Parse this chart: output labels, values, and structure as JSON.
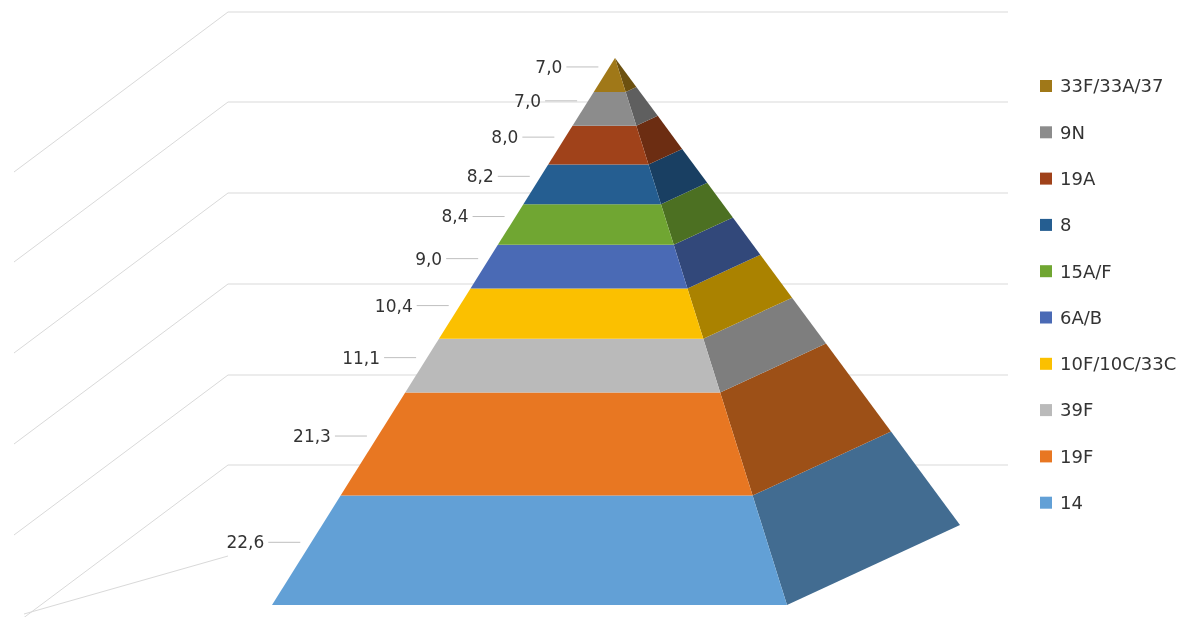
{
  "chart_data": {
    "type": "other",
    "categories": [
      "33F/33A/37",
      "9N",
      "19A",
      "8",
      "15A/F",
      "6A/B",
      "10F/10C/33C",
      "39F",
      "19F",
      "14"
    ],
    "values": [
      7.0,
      7.0,
      8.0,
      8.2,
      8.4,
      9.0,
      10.4,
      11.1,
      21.3,
      22.6
    ],
    "value_labels": [
      "7,0",
      "7,0",
      "8,0",
      "8,2",
      "8,4",
      "9,0",
      "10,4",
      "11,1",
      "21,3",
      "22,6"
    ],
    "colors": [
      "#a07818",
      "#8c8c8c",
      "#a0421a",
      "#255e91",
      "#70a632",
      "#4a6ab5",
      "#fbc000",
      "#bababa",
      "#e87722",
      "#62a0d6"
    ]
  }
}
